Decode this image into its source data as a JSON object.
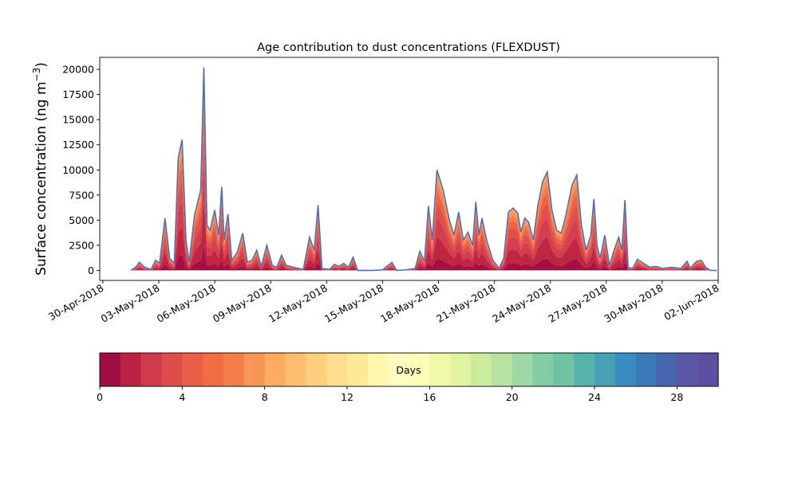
{
  "chart_data": {
    "type": "area",
    "title": "Age contribution to dust concentrations (FLEXDUST)",
    "ylabel": "Surface concentration (ng m",
    "ylabel_sup": "−3",
    "ylabel_close": ")",
    "xlabel": "",
    "ylim": [
      -1000,
      21200
    ],
    "xlim": [
      "2018-04-29T20:00",
      "2018-06-02T00:00"
    ],
    "yticks": [
      0,
      2500,
      5000,
      7500,
      10000,
      12500,
      15000,
      17500,
      20000
    ],
    "xticks": [
      "2018-04-30",
      "2018-05-03",
      "2018-05-06",
      "2018-05-09",
      "2018-05-12",
      "2018-05-15",
      "2018-05-18",
      "2018-05-21",
      "2018-05-24",
      "2018-05-27",
      "2018-05-30",
      "2018-06-02"
    ],
    "xticklabels": [
      "30-Apr-2018",
      "03-May-2018",
      "06-May-2018",
      "09-May-2018",
      "12-May-2018",
      "15-May-2018",
      "18-May-2018",
      "21-May-2018",
      "24-May-2018",
      "27-May-2018",
      "30-May-2018",
      "02-Jun-2018"
    ],
    "grid": false,
    "total_line_color": "#4f6fb0",
    "total": [
      [
        "2018-05-01T12:00",
        0
      ],
      [
        "2018-05-01T18:00",
        300
      ],
      [
        "2018-05-01T23:00",
        800
      ],
      [
        "2018-05-02T06:00",
        300
      ],
      [
        "2018-05-02T14:00",
        100
      ],
      [
        "2018-05-02T20:00",
        1000
      ],
      [
        "2018-05-03T01:00",
        700
      ],
      [
        "2018-05-03T08:00",
        5200
      ],
      [
        "2018-05-03T14:00",
        1200
      ],
      [
        "2018-05-03T20:00",
        700
      ],
      [
        "2018-05-04T01:00",
        11200
      ],
      [
        "2018-05-04T06:00",
        13000
      ],
      [
        "2018-05-04T11:00",
        3000
      ],
      [
        "2018-05-04T15:00",
        800
      ],
      [
        "2018-05-04T22:00",
        5500
      ],
      [
        "2018-05-05T06:00",
        8000
      ],
      [
        "2018-05-05T10:00",
        20200
      ],
      [
        "2018-05-05T14:00",
        4500
      ],
      [
        "2018-05-05T18:00",
        4000
      ],
      [
        "2018-05-06T00:00",
        6000
      ],
      [
        "2018-05-06T05:00",
        3500
      ],
      [
        "2018-05-06T09:00",
        8300
      ],
      [
        "2018-05-06T12:00",
        3000
      ],
      [
        "2018-05-06T17:00",
        5600
      ],
      [
        "2018-05-06T22:00",
        1000
      ],
      [
        "2018-05-07T05:00",
        1800
      ],
      [
        "2018-05-07T12:00",
        3700
      ],
      [
        "2018-05-07T18:00",
        800
      ],
      [
        "2018-05-08T00:00",
        1000
      ],
      [
        "2018-05-08T06:00",
        2000
      ],
      [
        "2018-05-08T12:00",
        400
      ],
      [
        "2018-05-08T19:00",
        2500
      ],
      [
        "2018-05-09T02:00",
        500
      ],
      [
        "2018-05-09T08:00",
        300
      ],
      [
        "2018-05-09T14:00",
        1500
      ],
      [
        "2018-05-09T20:00",
        500
      ],
      [
        "2018-05-10T06:00",
        300
      ],
      [
        "2018-05-10T18:00",
        100
      ],
      [
        "2018-05-11T02:00",
        3300
      ],
      [
        "2018-05-11T08:00",
        2000
      ],
      [
        "2018-05-11T13:00",
        6500
      ],
      [
        "2018-05-11T18:00",
        200
      ],
      [
        "2018-05-12T04:00",
        100
      ],
      [
        "2018-05-12T10:00",
        600
      ],
      [
        "2018-05-12T16:00",
        400
      ],
      [
        "2018-05-12T22:00",
        700
      ],
      [
        "2018-05-13T04:00",
        300
      ],
      [
        "2018-05-13T10:00",
        1300
      ],
      [
        "2018-05-13T16:00",
        0
      ],
      [
        "2018-05-14T00:00",
        0
      ],
      [
        "2018-05-14T12:00",
        0
      ],
      [
        "2018-05-15T00:00",
        50
      ],
      [
        "2018-05-15T12:00",
        800
      ],
      [
        "2018-05-15T18:00",
        0
      ],
      [
        "2018-05-16T06:00",
        50
      ],
      [
        "2018-05-16T18:00",
        200
      ],
      [
        "2018-05-17T00:00",
        1900
      ],
      [
        "2018-05-17T06:00",
        900
      ],
      [
        "2018-05-17T11:00",
        6400
      ],
      [
        "2018-05-17T16:00",
        3000
      ],
      [
        "2018-05-17T22:00",
        10000
      ],
      [
        "2018-05-18T06:00",
        8000
      ],
      [
        "2018-05-18T14:00",
        5000
      ],
      [
        "2018-05-18T20:00",
        3500
      ],
      [
        "2018-05-19T02:00",
        5800
      ],
      [
        "2018-05-19T08:00",
        3000
      ],
      [
        "2018-05-19T14:00",
        3800
      ],
      [
        "2018-05-19T20:00",
        2500
      ],
      [
        "2018-05-20T00:00",
        6800
      ],
      [
        "2018-05-20T04:00",
        3500
      ],
      [
        "2018-05-20T08:00",
        5200
      ],
      [
        "2018-05-20T14:00",
        3000
      ],
      [
        "2018-05-20T22:00",
        1000
      ],
      [
        "2018-05-21T06:00",
        200
      ],
      [
        "2018-05-21T12:00",
        1200
      ],
      [
        "2018-05-21T18:00",
        5800
      ],
      [
        "2018-05-22T00:00",
        6200
      ],
      [
        "2018-05-22T06:00",
        5700
      ],
      [
        "2018-05-22T10:00",
        3800
      ],
      [
        "2018-05-22T15:00",
        5200
      ],
      [
        "2018-05-22T20:00",
        4800
      ],
      [
        "2018-05-23T02:00",
        3000
      ],
      [
        "2018-05-23T08:00",
        6500
      ],
      [
        "2018-05-23T14:00",
        8800
      ],
      [
        "2018-05-23T20:00",
        9800
      ],
      [
        "2018-05-24T02:00",
        6000
      ],
      [
        "2018-05-24T08:00",
        4000
      ],
      [
        "2018-05-24T14:00",
        3700
      ],
      [
        "2018-05-24T20:00",
        5500
      ],
      [
        "2018-05-25T04:00",
        8500
      ],
      [
        "2018-05-25T10:00",
        9500
      ],
      [
        "2018-05-25T16:00",
        4500
      ],
      [
        "2018-05-25T22:00",
        2000
      ],
      [
        "2018-05-26T04:00",
        3500
      ],
      [
        "2018-05-26T08:00",
        7100
      ],
      [
        "2018-05-26T12:00",
        2500
      ],
      [
        "2018-05-26T16:00",
        1200
      ],
      [
        "2018-05-26T22:00",
        3500
      ],
      [
        "2018-05-27T04:00",
        500
      ],
      [
        "2018-05-27T10:00",
        2000
      ],
      [
        "2018-05-27T16:00",
        3300
      ],
      [
        "2018-05-27T20:00",
        2000
      ],
      [
        "2018-05-28T00:00",
        7000
      ],
      [
        "2018-05-28T04:00",
        300
      ],
      [
        "2018-05-28T10:00",
        200
      ],
      [
        "2018-05-28T16:00",
        1100
      ],
      [
        "2018-05-29T00:00",
        700
      ],
      [
        "2018-05-29T08:00",
        300
      ],
      [
        "2018-05-29T16:00",
        400
      ],
      [
        "2018-05-30T00:00",
        200
      ],
      [
        "2018-05-30T12:00",
        300
      ],
      [
        "2018-05-31T00:00",
        200
      ],
      [
        "2018-05-31T08:00",
        900
      ],
      [
        "2018-05-31T12:00",
        200
      ],
      [
        "2018-05-31T20:00",
        900
      ],
      [
        "2018-06-01T02:00",
        1000
      ],
      [
        "2018-06-01T08:00",
        300
      ],
      [
        "2018-06-01T14:00",
        0
      ],
      [
        "2018-06-01T22:00",
        0
      ]
    ],
    "age_bands_days": [
      0,
      1,
      2,
      3,
      4,
      5,
      6,
      7
    ],
    "band_fractions": [
      0.12,
      0.22,
      0.2,
      0.15,
      0.11,
      0.08,
      0.07,
      0.05
    ],
    "band_colors": [
      "#a50f44",
      "#c0263f",
      "#d53e4f",
      "#e14f49",
      "#ed6344",
      "#f67c4a",
      "#fa9357",
      "#fdab62"
    ],
    "colorbar": {
      "label": "Days",
      "range": [
        0,
        30
      ],
      "ticks": [
        0,
        4,
        8,
        12,
        16,
        20,
        24,
        28
      ],
      "tick_labels": [
        "0",
        "4",
        "8",
        "12",
        "16",
        "20",
        "24",
        "28"
      ],
      "colors": [
        "#a00d43",
        "#ba2343",
        "#cf3a4c",
        "#dc4d4b",
        "#e85e47",
        "#f16e43",
        "#f57d4a",
        "#f99555",
        "#fcab61",
        "#fdbf6f",
        "#fecf7e",
        "#fedf8f",
        "#fee997",
        "#fff6b0",
        "#fffcbe",
        "#fbfdb9",
        "#f1f9a9",
        "#e0f3a0",
        "#cdeb9d",
        "#b7e2a1",
        "#9fd8a4",
        "#83cca4",
        "#6fc3a4",
        "#58b3aa",
        "#47a0b3",
        "#3b8cc0",
        "#3a7ab8",
        "#4866ad",
        "#5a55a5",
        "#5e4fa2"
      ]
    }
  }
}
